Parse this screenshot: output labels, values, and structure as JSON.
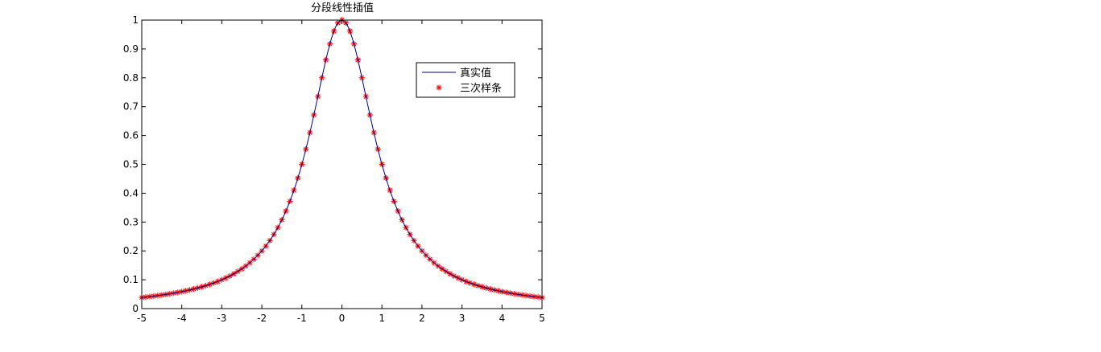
{
  "chart_data": {
    "type": "line",
    "title": "分段线性插值",
    "xlabel": "",
    "ylabel": "",
    "xlim": [
      -5,
      5
    ],
    "ylim": [
      0,
      1
    ],
    "xticks": [
      "-5",
      "-4",
      "-3",
      "-2",
      "-1",
      "0",
      "1",
      "2",
      "3",
      "4",
      "5"
    ],
    "yticks": [
      "0",
      "0.1",
      "0.2",
      "0.3",
      "0.4",
      "0.5",
      "0.6",
      "0.7",
      "0.8",
      "0.9",
      "1"
    ],
    "grid": false,
    "legend_position": "top-right",
    "series": [
      {
        "name": "真实值",
        "style": "line",
        "color": "#00007f",
        "function": "1/(1+x^2)",
        "x_range": [
          -5,
          5
        ]
      },
      {
        "name": "三次样条",
        "style": "markers",
        "marker": "asterisk",
        "color": "#ff0000",
        "x_range": [
          -5,
          5
        ],
        "x_step": 0.1
      }
    ]
  }
}
